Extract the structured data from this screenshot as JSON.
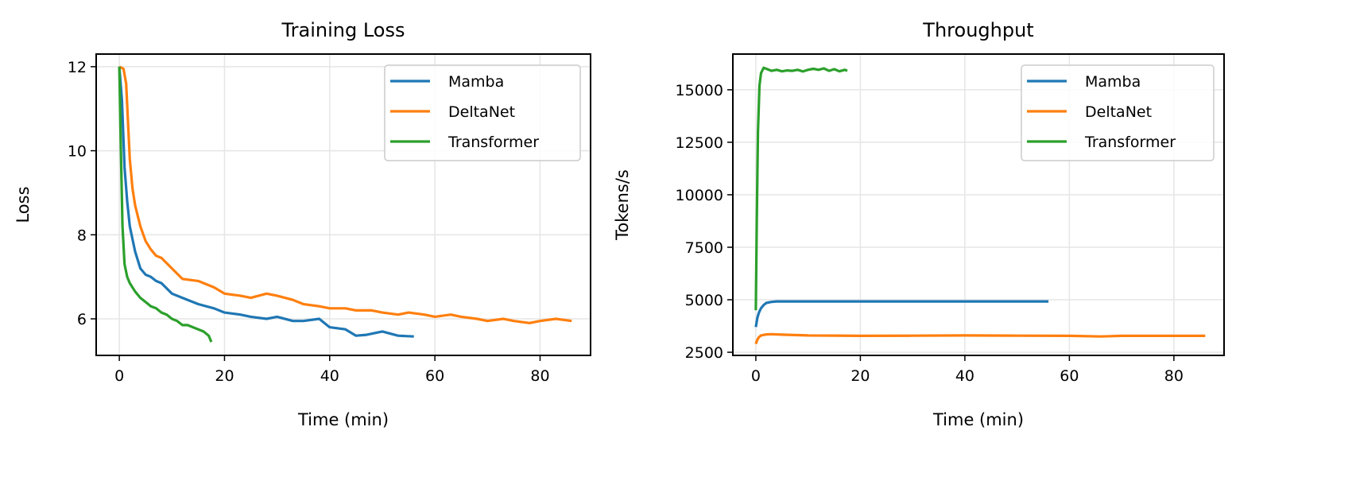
{
  "chart_data": [
    {
      "type": "line",
      "title": "Training Loss",
      "xlabel": "Time (min)",
      "ylabel": "Loss",
      "xlim": [
        -4.4,
        89.6
      ],
      "ylim": [
        5.13,
        12.3
      ],
      "xticks": [
        0,
        20,
        40,
        60,
        80
      ],
      "yticks": [
        6,
        8,
        10,
        12
      ],
      "grid": true,
      "legend": "top-right",
      "series": [
        {
          "name": "Mamba",
          "color": "#1f77b4",
          "x": [
            0,
            0.5,
            1,
            1.5,
            2,
            3,
            4,
            5,
            6,
            7,
            8,
            10,
            12,
            15,
            18,
            20,
            23,
            25,
            28,
            30,
            33,
            35,
            38,
            40,
            43,
            45,
            47,
            50,
            53,
            56
          ],
          "y": [
            12,
            11.2,
            9.6,
            8.8,
            8.2,
            7.6,
            7.2,
            7.05,
            7.0,
            6.9,
            6.85,
            6.6,
            6.5,
            6.35,
            6.25,
            6.15,
            6.1,
            6.05,
            6.0,
            6.05,
            5.95,
            5.95,
            6.0,
            5.8,
            5.75,
            5.6,
            5.62,
            5.7,
            5.6,
            5.58
          ]
        },
        {
          "name": "DeltaNet",
          "color": "#ff7f0e",
          "x": [
            0,
            0.8,
            1.3,
            2,
            2.5,
            3,
            4,
            5,
            6,
            7,
            8,
            10,
            12,
            15,
            18,
            20,
            23,
            25,
            28,
            30,
            33,
            35,
            38,
            40,
            43,
            45,
            48,
            50,
            53,
            55,
            58,
            60,
            63,
            65,
            68,
            70,
            73,
            75,
            78,
            80,
            83,
            86
          ],
          "y": [
            12,
            11.95,
            11.6,
            9.8,
            9.1,
            8.7,
            8.2,
            7.85,
            7.65,
            7.5,
            7.45,
            7.2,
            6.95,
            6.9,
            6.75,
            6.6,
            6.55,
            6.5,
            6.6,
            6.55,
            6.45,
            6.35,
            6.3,
            6.25,
            6.25,
            6.2,
            6.2,
            6.15,
            6.1,
            6.15,
            6.1,
            6.05,
            6.1,
            6.05,
            6.0,
            5.95,
            6.0,
            5.95,
            5.9,
            5.95,
            6.0,
            5.95
          ]
        },
        {
          "name": "Transformer",
          "color": "#2ca02c",
          "x": [
            0,
            0.3,
            0.6,
            1,
            1.5,
            2,
            3,
            4,
            5,
            6,
            7,
            8,
            9,
            10,
            11,
            12,
            13,
            14,
            15,
            16,
            17,
            17.5
          ],
          "y": [
            12,
            10,
            8.2,
            7.3,
            7.0,
            6.85,
            6.65,
            6.5,
            6.4,
            6.3,
            6.25,
            6.15,
            6.1,
            6.0,
            5.95,
            5.85,
            5.85,
            5.8,
            5.75,
            5.7,
            5.6,
            5.45
          ]
        }
      ]
    },
    {
      "type": "line",
      "title": "Throughput",
      "xlabel": "Time (min)",
      "ylabel": "Tokens/s",
      "xlim": [
        -4.4,
        89.6
      ],
      "ylim": [
        2350,
        16700
      ],
      "xticks": [
        0,
        20,
        40,
        60,
        80
      ],
      "yticks": [
        2500,
        5000,
        7500,
        10000,
        12500,
        15000
      ],
      "grid": true,
      "legend": "top-right",
      "series": [
        {
          "name": "Mamba",
          "color": "#1f77b4",
          "x": [
            0,
            0.3,
            0.6,
            1,
            1.5,
            2,
            3,
            4,
            6,
            10,
            20,
            30,
            40,
            50,
            56
          ],
          "y": [
            3700,
            4150,
            4400,
            4600,
            4750,
            4850,
            4900,
            4920,
            4920,
            4920,
            4920,
            4920,
            4920,
            4920,
            4920
          ]
        },
        {
          "name": "DeltaNet",
          "color": "#ff7f0e",
          "x": [
            0,
            0.3,
            0.6,
            1,
            2,
            3,
            5,
            10,
            20,
            30,
            40,
            50,
            60,
            66,
            70,
            80,
            86
          ],
          "y": [
            2900,
            3100,
            3220,
            3300,
            3350,
            3360,
            3340,
            3300,
            3280,
            3290,
            3300,
            3290,
            3280,
            3250,
            3280,
            3280,
            3280
          ]
        },
        {
          "name": "Transformer",
          "color": "#2ca02c",
          "x": [
            0,
            0.2,
            0.4,
            0.7,
            1,
            1.5,
            2,
            3,
            4,
            5,
            6,
            7,
            8,
            9,
            10,
            11,
            12,
            13,
            14,
            15,
            16,
            17,
            17.5
          ],
          "y": [
            4500,
            9000,
            13000,
            15200,
            15800,
            16050,
            16000,
            15900,
            15950,
            15880,
            15920,
            15900,
            15950,
            15870,
            15950,
            16000,
            15950,
            16020,
            15900,
            15980,
            15880,
            15950,
            15900
          ]
        }
      ]
    }
  ]
}
